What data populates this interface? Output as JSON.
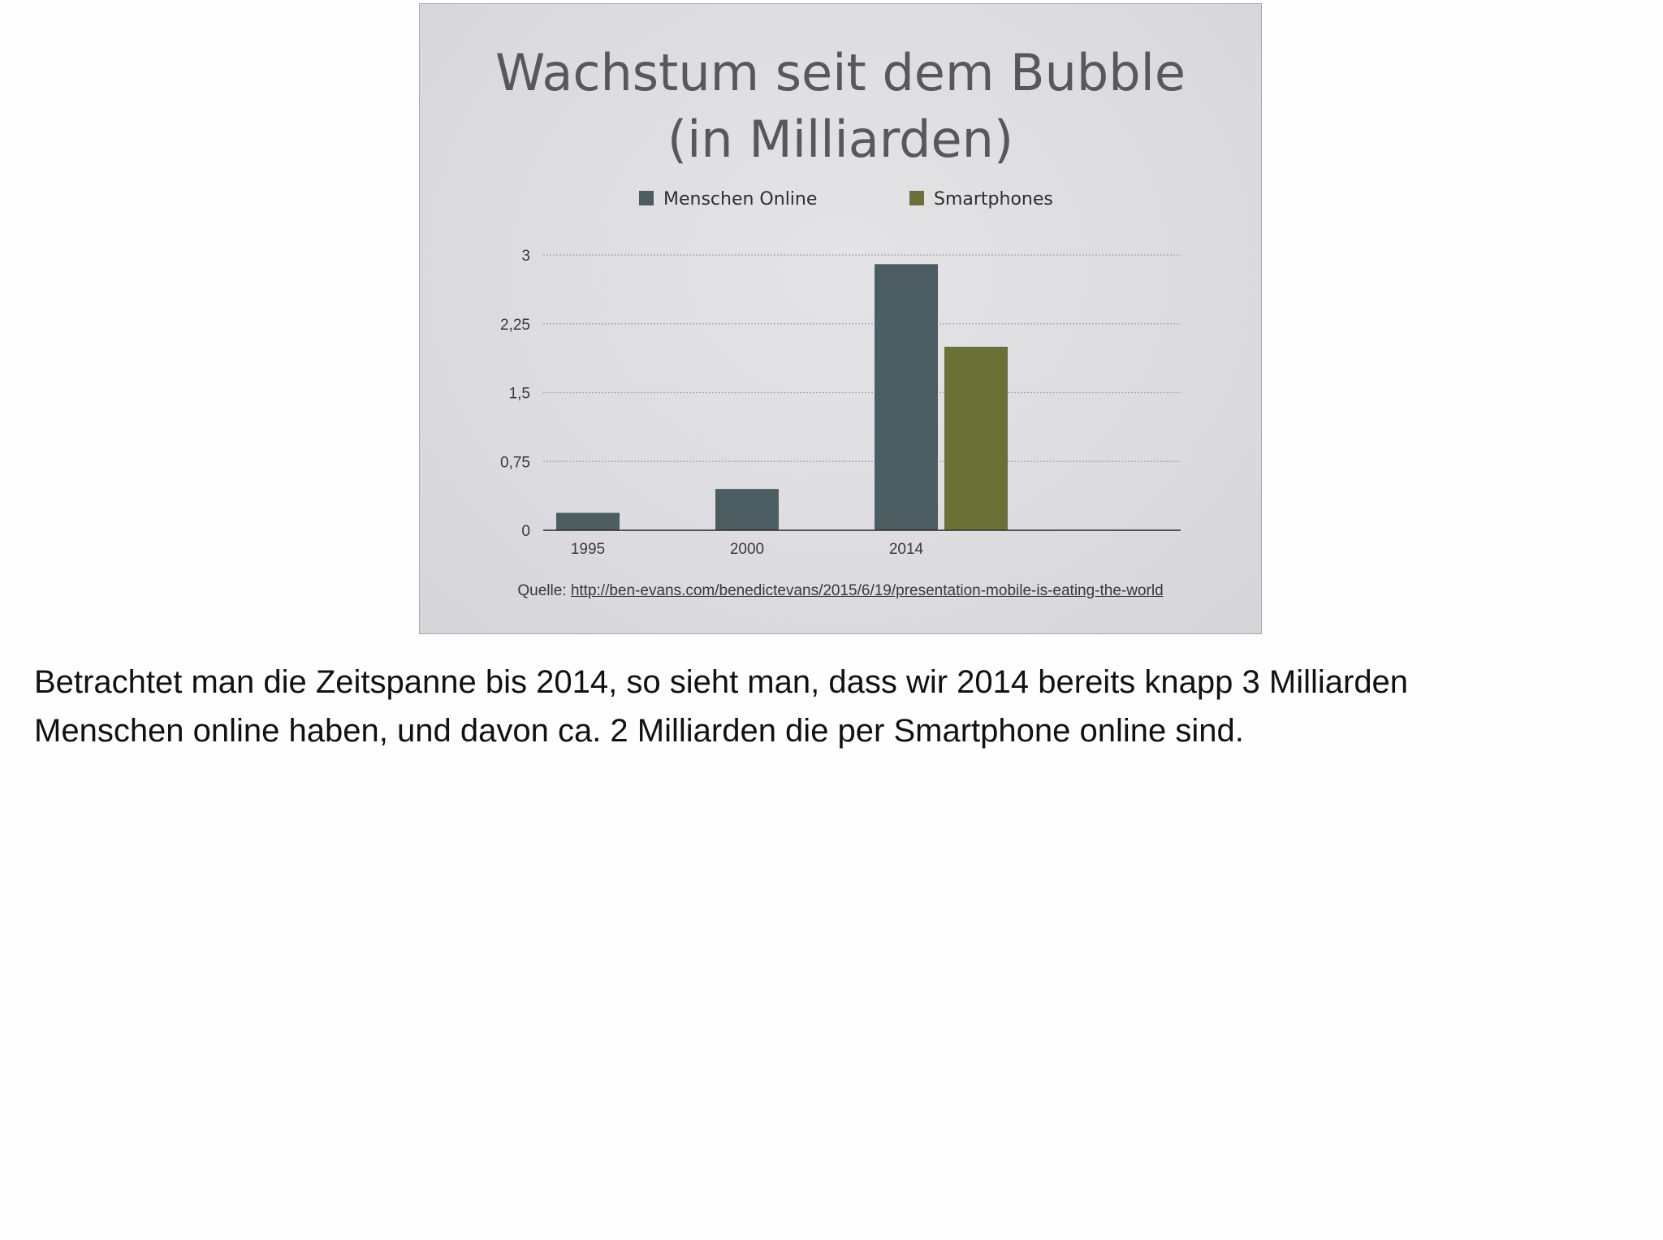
{
  "chart_data": {
    "type": "bar",
    "title": "Wachstum seit dem Bubble",
    "subtitle": "(in Milliarden)",
    "categories": [
      "1995",
      "2000",
      "2014"
    ],
    "series": [
      {
        "name": "Menschen Online",
        "values": [
          0.19,
          0.45,
          2.9
        ],
        "color": "#4c5d61"
      },
      {
        "name": "Smartphones",
        "values": [
          null,
          null,
          2.0
        ],
        "color": "#6a7137"
      }
    ],
    "yticks": [
      "0",
      "0,75",
      "1,5",
      "2,25",
      "3"
    ],
    "ytick_values": [
      0,
      0.75,
      1.5,
      2.25,
      3
    ],
    "ylim": [
      0,
      3
    ],
    "grid": true,
    "legend": "top-center",
    "xlabel": "",
    "ylabel": ""
  },
  "source": {
    "label": "Quelle:",
    "url_text": "http://ben-evans.com/benedictevans/2015/6/19/presentation-mobile-is-eating-the-world"
  },
  "caption": {
    "line1": "Betrachtet man die Zeitspanne bis 2014, so sieht man, dass wir 2014 bereits knapp 3 Milliarden",
    "line2": "Menschen online haben, und davon ca. 2 Milliarden die per Smartphone online sind."
  }
}
